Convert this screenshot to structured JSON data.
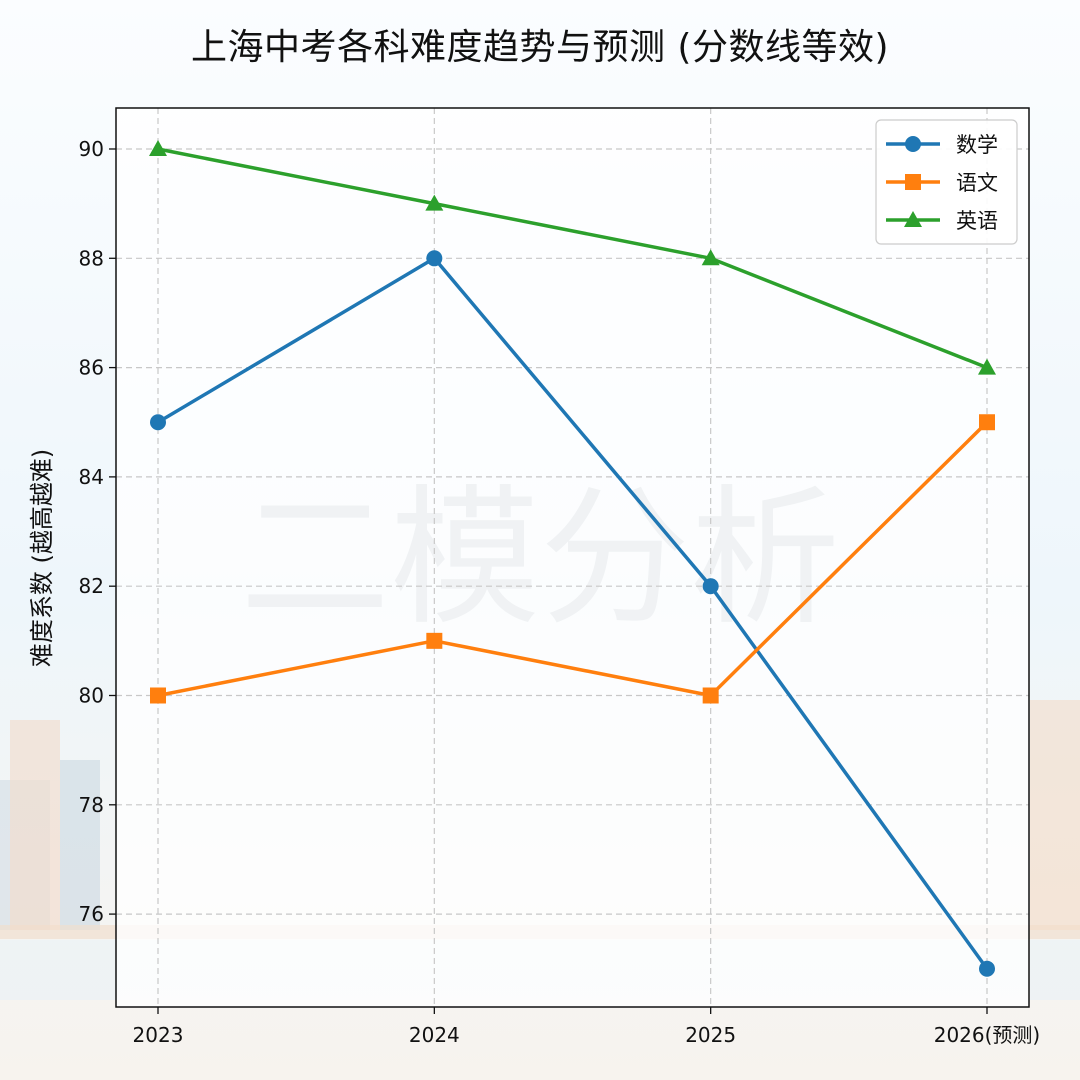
{
  "title": "上海中考各科难度趋势与预测 (分数线等效)",
  "watermark": "二模分析",
  "chart_data": {
    "type": "line",
    "categories": [
      "2023",
      "2024",
      "2025",
      "2026(预测)"
    ],
    "ylabel": "难度系数 (越高越难)",
    "xlabel": "",
    "ylim": [
      74.3,
      90.75
    ],
    "yticks": [
      76,
      78,
      80,
      82,
      84,
      86,
      88,
      90
    ],
    "grid": true,
    "legend_position": "top-right",
    "series": [
      {
        "name": "数学",
        "values": [
          85,
          88,
          82,
          75
        ],
        "color": "#1f77b4",
        "marker": "circle"
      },
      {
        "name": "语文",
        "values": [
          80,
          81,
          80,
          85
        ],
        "color": "#ff7f0e",
        "marker": "square"
      },
      {
        "name": "英语",
        "values": [
          90,
          89,
          88,
          86
        ],
        "color": "#2ca02c",
        "marker": "triangle"
      }
    ]
  }
}
